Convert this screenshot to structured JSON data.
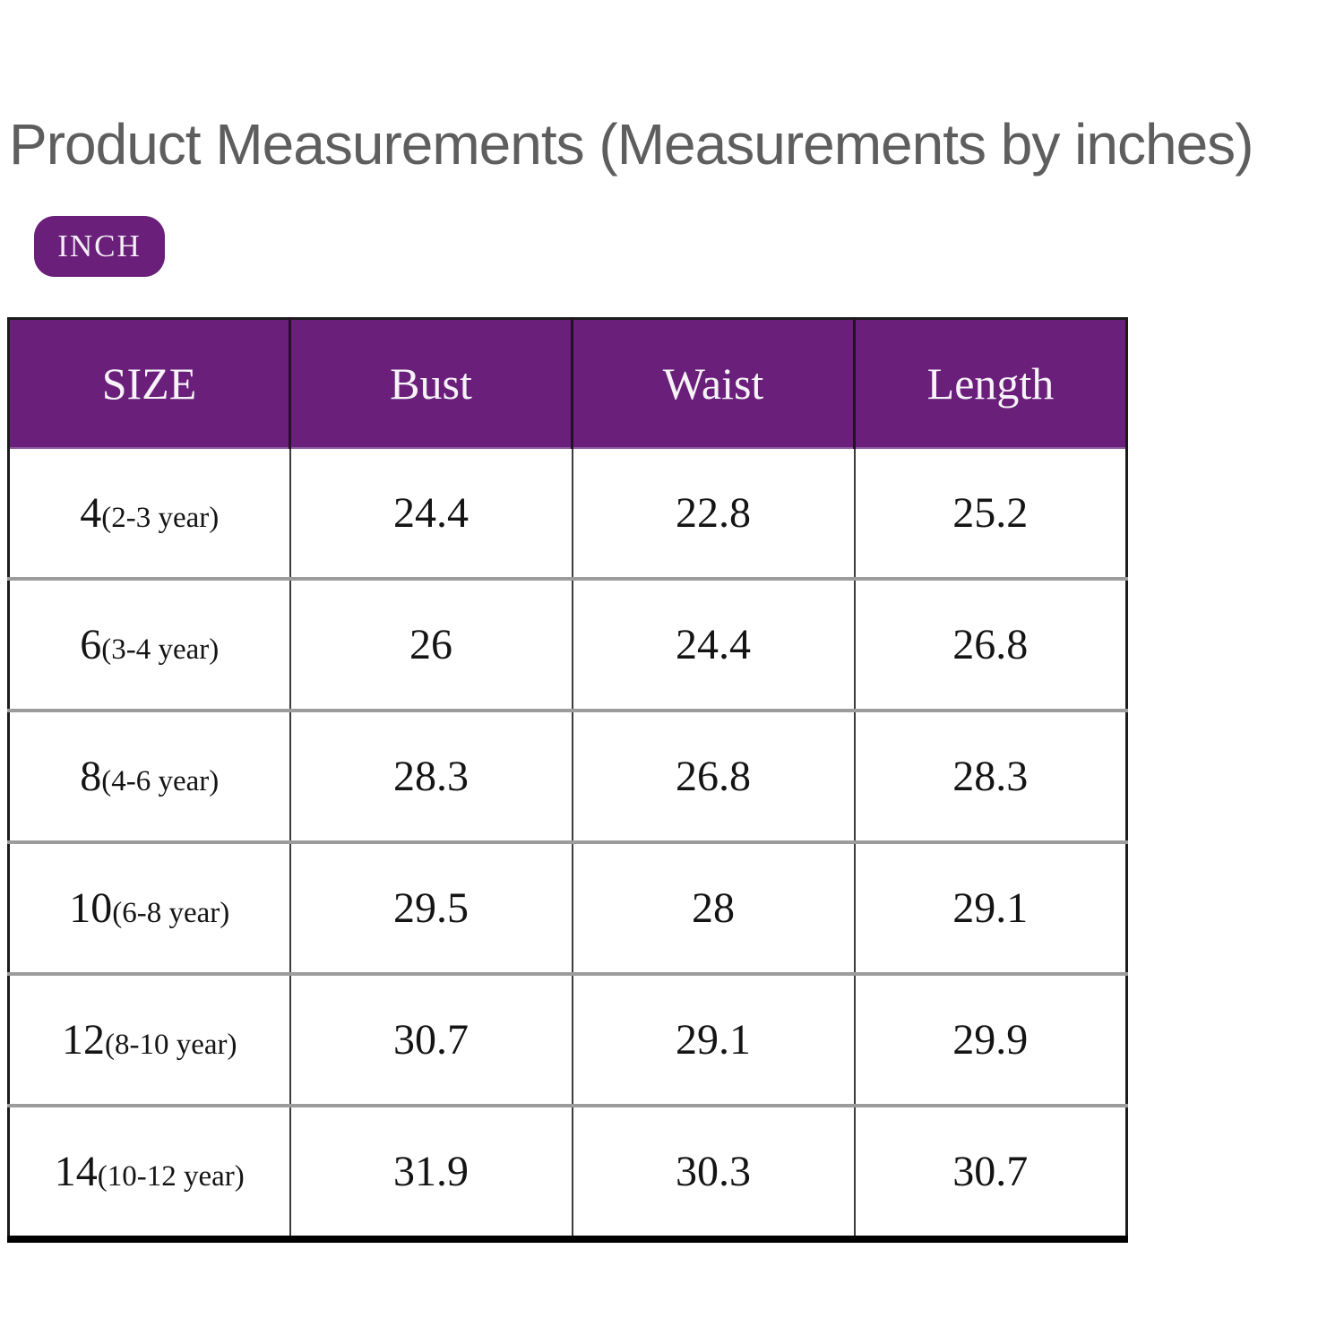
{
  "title": "Product Measurements (Measurements by inches)",
  "unit_badge": "INCH",
  "colors": {
    "purple": "#6A1F7B",
    "title_gray": "#5E5E5E"
  },
  "table": {
    "columns": [
      "SIZE",
      "Bust",
      "Waist",
      "Length"
    ],
    "rows": [
      {
        "size": "4",
        "age": "(2-3 year)",
        "bust": "24.4",
        "waist": "22.8",
        "length": "25.2"
      },
      {
        "size": "6",
        "age": "(3-4 year)",
        "bust": "26",
        "waist": "24.4",
        "length": "26.8"
      },
      {
        "size": "8",
        "age": "(4-6 year)",
        "bust": "28.3",
        "waist": "26.8",
        "length": "28.3"
      },
      {
        "size": "10",
        "age": "(6-8 year)",
        "bust": "29.5",
        "waist": "28",
        "length": "29.1"
      },
      {
        "size": "12",
        "age": "(8-10 year)",
        "bust": "30.7",
        "waist": "29.1",
        "length": "29.9"
      },
      {
        "size": "14",
        "age": "(10-12 year)",
        "bust": "31.9",
        "waist": "30.3",
        "length": "30.7"
      }
    ]
  }
}
